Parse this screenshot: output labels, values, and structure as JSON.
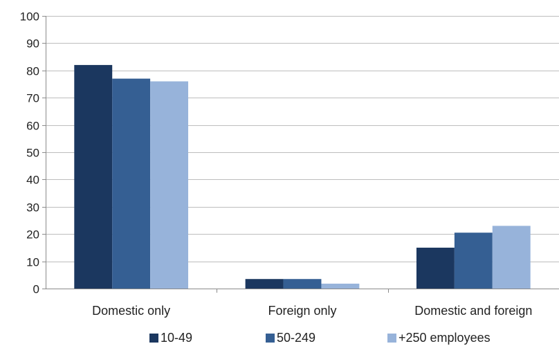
{
  "chart_data": {
    "type": "bar",
    "title": "",
    "xlabel": "",
    "ylabel": "",
    "categories": [
      "Domestic only",
      "Foreign only",
      "Domestic and foreign"
    ],
    "series": [
      {
        "name": "10-49",
        "values": [
          82,
          3.5,
          15
        ],
        "color": "#1b375f"
      },
      {
        "name": "50-249",
        "values": [
          77,
          3.5,
          20.5
        ],
        "color": "#355f93"
      },
      {
        "name": "+250 employees",
        "values": [
          76,
          1.8,
          23
        ],
        "color": "#97b3da"
      }
    ],
    "ylim": [
      0,
      100
    ],
    "yticks": [
      0,
      10,
      20,
      30,
      40,
      50,
      60,
      70,
      80,
      90,
      100
    ],
    "grid": true,
    "legend_position": "bottom"
  }
}
